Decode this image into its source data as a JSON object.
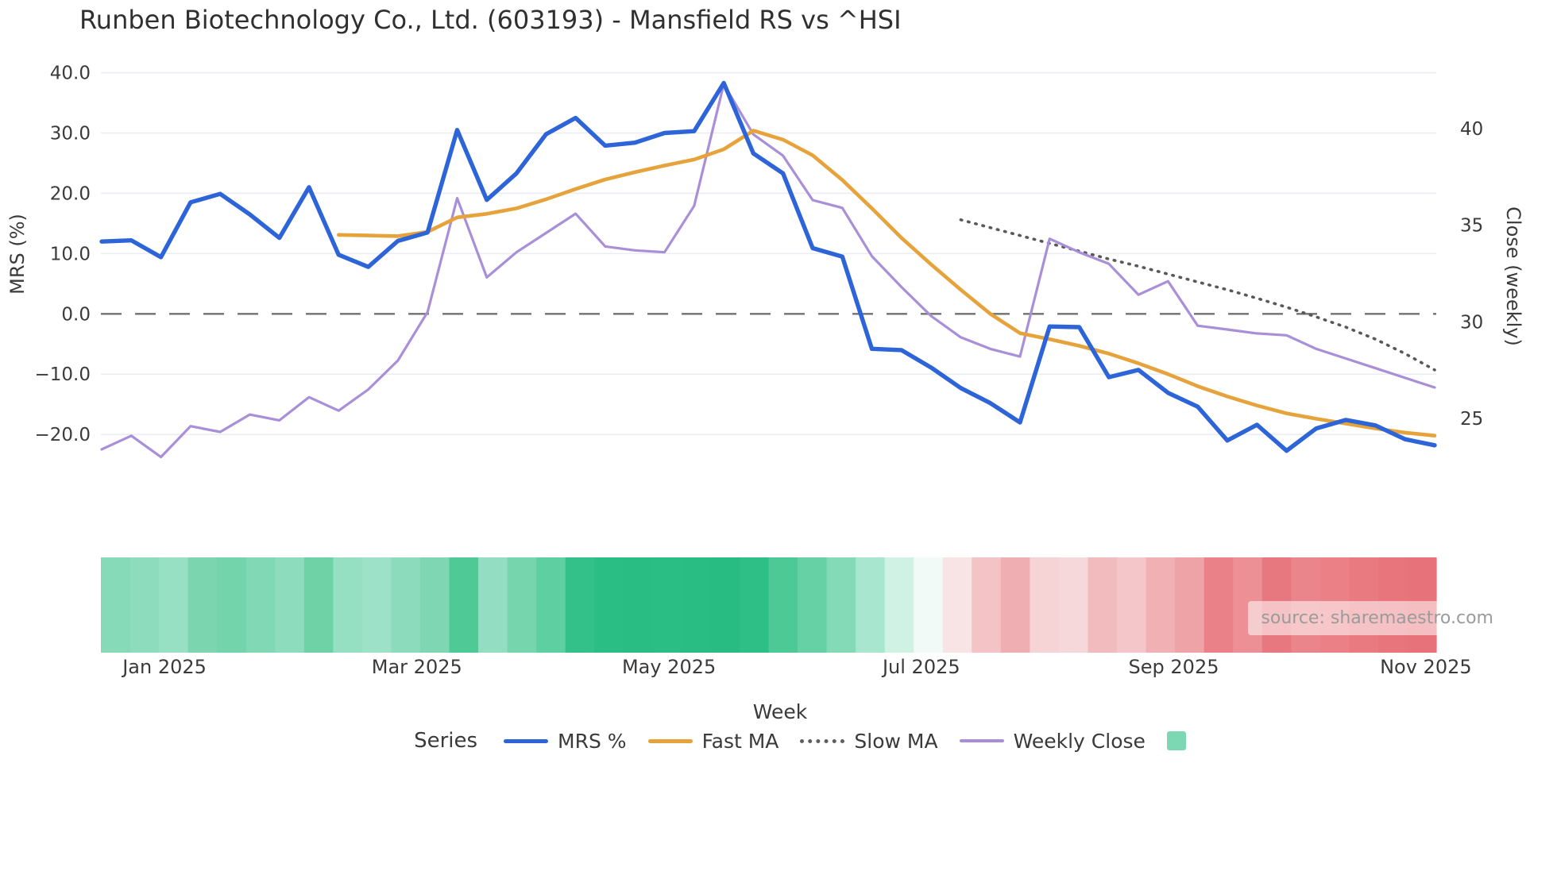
{
  "chart": {
    "title": "Runben Biotechnology Co., Ltd. (603193) - Mansfield RS vs ^HSI",
    "xlabel": "Week",
    "source": "source: sharemaestro.com"
  },
  "chart_data": {
    "type": "line",
    "title": "Runben Biotechnology Co., Ltd. (603193) - Mansfield RS vs ^HSI",
    "xlabel": "Week",
    "left_axis": {
      "title": "MRS (%)",
      "ticks": [
        {
          "value": 40,
          "label": "40.0"
        },
        {
          "value": 30,
          "label": "30.0"
        },
        {
          "value": 20,
          "label": "20.0"
        },
        {
          "value": 10,
          "label": "10.0"
        },
        {
          "value": 0,
          "label": "0.0"
        },
        {
          "value": -10,
          "label": "−10.0"
        },
        {
          "value": -20,
          "label": "−20.0"
        }
      ],
      "zero_line_value": 0
    },
    "right_axis": {
      "title": "Close (weekly)",
      "ticks": [
        {
          "value": 40,
          "label": "40"
        },
        {
          "value": 35,
          "label": "35"
        },
        {
          "value": 30,
          "label": "30"
        },
        {
          "value": 25,
          "label": "25"
        }
      ]
    },
    "x_ticks": [
      {
        "label": "Jan 2025",
        "week": 2.12
      },
      {
        "label": "Mar 2025",
        "week": 10.64
      },
      {
        "label": "May 2025",
        "week": 19.15
      },
      {
        "label": "Jul 2025",
        "week": 27.67
      },
      {
        "label": "Sep 2025",
        "week": 36.19
      },
      {
        "label": "Nov 2025",
        "week": 44.7
      }
    ],
    "series": [
      {
        "name": "Slow MA",
        "axis": "left",
        "color": "#595959",
        "width": 3.6,
        "dash": "dotted",
        "start_week": 29,
        "values": [
          15.6,
          14.3,
          13.0,
          11.7,
          10.4,
          9.1,
          7.9,
          6.6,
          5.3,
          4.0,
          2.6,
          1.1,
          -0.5,
          -2.2,
          -4.2,
          -6.6,
          -9.3
        ]
      },
      {
        "name": "Weekly Close",
        "axis": "right",
        "color": "#a88fd8",
        "width": 3.2,
        "dash": "solid",
        "start_week": 0,
        "values": [
          23.4,
          24.1,
          23.0,
          24.6,
          24.3,
          25.2,
          24.9,
          26.1,
          25.4,
          26.5,
          28.0,
          30.5,
          36.4,
          32.3,
          33.6,
          34.6,
          35.6,
          33.9,
          33.7,
          33.6,
          36.0,
          42.3,
          39.7,
          38.6,
          36.3,
          35.9,
          33.4,
          31.8,
          30.3,
          29.2,
          28.6,
          28.2,
          34.3,
          33.6,
          33.0,
          31.4,
          32.1,
          29.8,
          29.6,
          29.4,
          29.3,
          28.6,
          28.1,
          27.6,
          27.1,
          26.6
        ]
      },
      {
        "name": "Fast MA",
        "axis": "left",
        "color": "#e6a33b",
        "width": 4.6,
        "dash": "solid",
        "start_week": 8,
        "values": [
          13.1,
          13.0,
          12.9,
          13.6,
          16.0,
          16.6,
          17.5,
          19.0,
          20.7,
          22.3,
          23.5,
          24.6,
          25.6,
          27.3,
          30.4,
          28.9,
          26.3,
          22.2,
          17.5,
          12.6,
          8.2,
          4.0,
          0.0,
          -3.2,
          -4.2,
          -5.3,
          -6.6,
          -8.2,
          -10.0,
          -12.0,
          -13.7,
          -15.2,
          -16.5,
          -17.4,
          -18.2,
          -19.0,
          -19.7,
          -20.2
        ]
      },
      {
        "name": "MRS %",
        "axis": "left",
        "color": "#2d64d8",
        "width": 5.4,
        "dash": "solid",
        "start_week": 0,
        "values": [
          12.0,
          12.2,
          9.4,
          18.5,
          19.9,
          16.5,
          12.6,
          21.0,
          9.8,
          7.8,
          12.1,
          13.5,
          30.5,
          18.9,
          23.3,
          29.8,
          32.5,
          27.9,
          28.4,
          30.0,
          30.3,
          38.3,
          26.6,
          23.3,
          10.9,
          9.5,
          -5.8,
          -6.0,
          -8.9,
          -12.3,
          -14.8,
          -18.0,
          -2.1,
          -2.2,
          -10.5,
          -9.3,
          -13.1,
          -15.4,
          -21.0,
          -18.4,
          -22.7,
          -19.0,
          -17.6,
          -18.5,
          -20.8,
          -21.8
        ]
      }
    ],
    "heat_strip": {
      "colors": [
        "#86dab8",
        "#8edcbe",
        "#97e0c4",
        "#7bd6b0",
        "#73d4ab",
        "#81d8b4",
        "#8edcbe",
        "#6fd2a7",
        "#95dfc3",
        "#9ce1c8",
        "#8bdbbc",
        "#7ed7b2",
        "#4fca97",
        "#93dec2",
        "#77d5ad",
        "#5ecfa0",
        "#33c189",
        "#2abd84",
        "#29bd83",
        "#2abd84",
        "#29bd83",
        "#28bc82",
        "#2ebf86",
        "#4cc995",
        "#66d1a5",
        "#84d9b7",
        "#a9e6cf",
        "#cff2e4",
        "#f2faf7",
        "#f9e4e5",
        "#f3c3c6",
        "#efaeb2",
        "#f6d3d5",
        "#f7d8da",
        "#f2bbbe",
        "#f4c6c9",
        "#f0b0b4",
        "#eea3a7",
        "#ea8188",
        "#ec9096",
        "#e87880",
        "#ea858b",
        "#eb8187",
        "#e97a80",
        "#e8757c",
        "#e87279"
      ]
    },
    "legend": {
      "title": "Series",
      "items": [
        {
          "label": "MRS %",
          "type": "line",
          "color": "#2d64d8"
        },
        {
          "label": "Fast MA",
          "type": "line",
          "color": "#e6a33b"
        },
        {
          "label": "Slow MA",
          "type": "dotted",
          "color": "#5f5f5f"
        },
        {
          "label": "Weekly Close",
          "type": "line-thin",
          "color": "#a88fd8"
        },
        {
          "label": "",
          "type": "square",
          "color": "#7cd8b2"
        }
      ]
    },
    "grid": {
      "color": "#eaeef3",
      "zero_line_color": "#707070"
    }
  }
}
